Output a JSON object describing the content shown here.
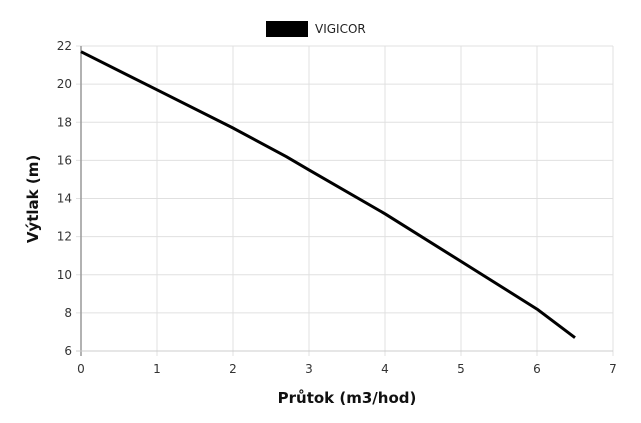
{
  "chart_data": {
    "type": "line",
    "title": "",
    "legend": {
      "position": "top",
      "entries": [
        "VIGICOR"
      ]
    },
    "xlabel": "Průtok (m3/hod)",
    "ylabel": "Výtlak (m)",
    "xlim": [
      0,
      7
    ],
    "ylim": [
      6,
      22
    ],
    "x_ticks": [
      "0",
      "1",
      "2",
      "3",
      "4",
      "5",
      "6",
      "7"
    ],
    "y_ticks": [
      "6",
      "8",
      "10",
      "12",
      "14",
      "16",
      "18",
      "20",
      "22"
    ],
    "grid": true,
    "series": [
      {
        "name": "VIGICOR",
        "color": "#000000",
        "x": [
          0,
          1,
          2,
          2.7,
          3,
          4,
          5,
          6,
          6.5
        ],
        "y": [
          21.7,
          19.7,
          17.7,
          16.2,
          15.5,
          13.2,
          10.7,
          8.2,
          6.7
        ]
      }
    ]
  },
  "colors": {
    "grid": "#e0e0e0",
    "axis": "#999999",
    "line": "#000000"
  }
}
